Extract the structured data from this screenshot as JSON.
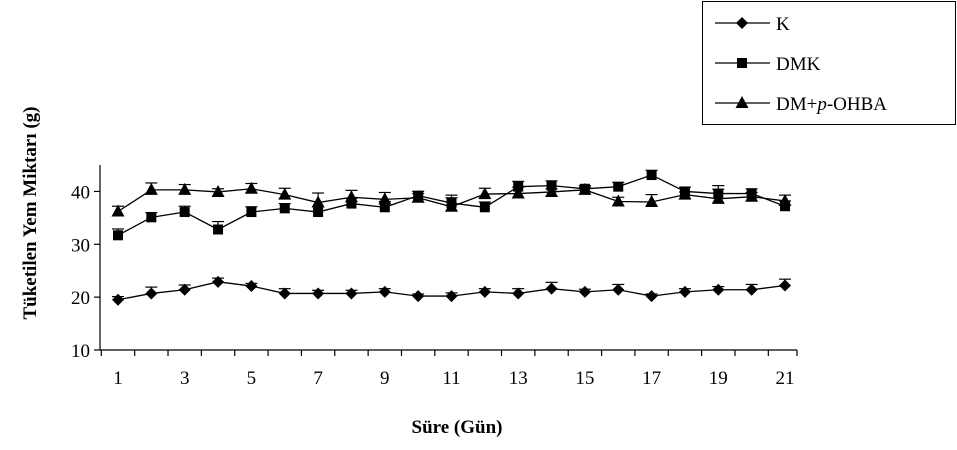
{
  "chart_data": {
    "type": "line",
    "title": "",
    "xlabel": "Süre (Gün)",
    "ylabel": "Tüketilen Yem Miktarı (g)",
    "xlim": [
      1,
      21
    ],
    "ylim": [
      10,
      45
    ],
    "x_ticks": [
      1,
      3,
      5,
      7,
      9,
      11,
      13,
      15,
      17,
      19,
      21
    ],
    "y_ticks": [
      10,
      20,
      30,
      40
    ],
    "x": [
      1,
      2,
      3,
      4,
      5,
      6,
      7,
      8,
      9,
      10,
      11,
      12,
      13,
      14,
      15,
      16,
      17,
      18,
      19,
      20,
      21
    ],
    "grid": false,
    "legend_position": "top-right",
    "error_bars": "upper",
    "series": [
      {
        "name": "K",
        "marker": "diamond",
        "values": [
          19.5,
          20.7,
          21.4,
          22.9,
          22.1,
          20.7,
          20.7,
          20.7,
          21.0,
          20.2,
          20.2,
          21.0,
          20.7,
          21.6,
          21.0,
          21.4,
          20.2,
          21.0,
          21.4,
          21.4,
          22.2
        ],
        "errors": [
          0.6,
          1.2,
          0.9,
          0.7,
          0.5,
          0.9,
          0.6,
          0.6,
          0.6,
          0.4,
          0.6,
          0.6,
          0.9,
          1.2,
          0.5,
          1.0,
          0.4,
          0.6,
          0.6,
          1.0,
          1.2
        ]
      },
      {
        "name": "DMK",
        "marker": "square",
        "values": [
          31.7,
          35.1,
          36.1,
          32.8,
          36.1,
          36.8,
          36.1,
          37.7,
          37.0,
          39.2,
          37.8,
          37.0,
          40.9,
          41.1,
          40.5,
          40.9,
          43.1,
          40.0,
          39.6,
          39.6,
          37.2
        ],
        "errors": [
          1.2,
          0.9,
          1.1,
          1.5,
          1.0,
          0.9,
          1.0,
          1.0,
          1.1,
          0.8,
          1.5,
          1.0,
          1.0,
          0.9,
          0.6,
          0.8,
          0.9,
          0.8,
          1.5,
          0.9,
          1.0
        ]
      },
      {
        "name": "DM+p-OHBA",
        "marker": "triangle",
        "values": [
          36.2,
          40.3,
          40.3,
          39.9,
          40.5,
          39.4,
          37.9,
          38.9,
          38.5,
          38.8,
          37.1,
          39.5,
          39.6,
          39.9,
          40.3,
          38.1,
          38.0,
          39.4,
          38.6,
          39.0,
          38.2
        ],
        "errors": [
          1.0,
          1.3,
          1.0,
          0.6,
          1.0,
          1.2,
          1.8,
          1.3,
          1.3,
          0.8,
          1.7,
          1.1,
          1.2,
          0.6,
          0.5,
          0.8,
          1.4,
          0.5,
          1.8,
          0.8,
          1.1
        ]
      }
    ]
  }
}
